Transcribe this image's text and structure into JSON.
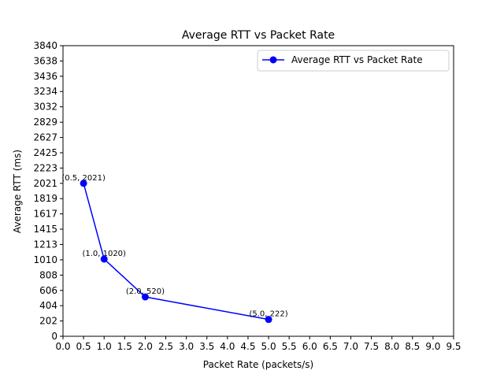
{
  "chart_data": {
    "type": "line",
    "title": "Average RTT vs Packet Rate",
    "xlabel": "Packet Rate (packets/s)",
    "ylabel": "Average RTT (ms)",
    "xlim": [
      0,
      9.5
    ],
    "ylim": [
      0,
      3840
    ],
    "x_ticks": [
      "0.0",
      "0.5",
      "1.0",
      "1.5",
      "2.0",
      "2.5",
      "3.0",
      "3.5",
      "4.0",
      "4.5",
      "5.0",
      "5.5",
      "6.0",
      "6.5",
      "7.0",
      "7.5",
      "8.0",
      "8.5",
      "9.0",
      "9.5"
    ],
    "y_ticks": [
      0,
      202,
      404,
      606,
      808,
      1010,
      1213,
      1415,
      1617,
      1819,
      2021,
      2223,
      2425,
      2627,
      2829,
      3032,
      3234,
      3436,
      3638,
      3840
    ],
    "grid": false,
    "legend_position": "top-right",
    "series": [
      {
        "name": "Average RTT vs Packet Rate",
        "color": "#0000ff",
        "marker": "circle",
        "x": [
          0.5,
          1.0,
          2.0,
          5.0
        ],
        "y": [
          2021,
          1020,
          520,
          222
        ]
      }
    ],
    "annotations": [
      "(0.5, 2021)",
      "(1.0, 1020)",
      "(2.0, 520)",
      "(5.0, 222)"
    ]
  }
}
